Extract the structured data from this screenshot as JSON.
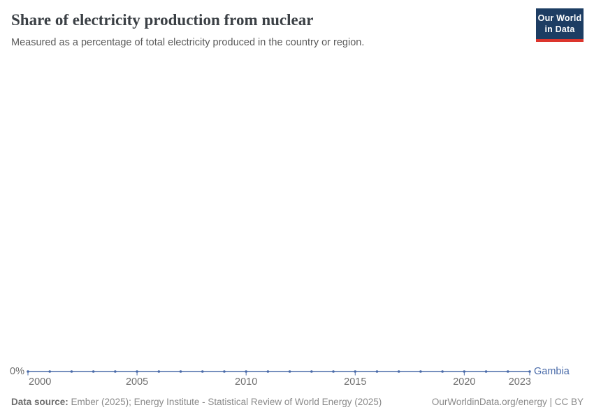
{
  "header": {
    "title": "Share of electricity production from nuclear",
    "subtitle": "Measured as a percentage of total electricity produced in the country or region.",
    "logo": {
      "line1": "Our World",
      "line2": "in Data"
    }
  },
  "chart_data": {
    "type": "line",
    "title": "Share of electricity production from nuclear",
    "subtitle": "Measured as a percentage of total electricity produced in the country or region.",
    "x": [
      2000,
      2001,
      2002,
      2003,
      2004,
      2005,
      2006,
      2007,
      2008,
      2009,
      2010,
      2011,
      2012,
      2013,
      2014,
      2015,
      2016,
      2017,
      2018,
      2019,
      2020,
      2021,
      2022,
      2023
    ],
    "series": [
      {
        "name": "Gambia",
        "values": [
          0,
          0,
          0,
          0,
          0,
          0,
          0,
          0,
          0,
          0,
          0,
          0,
          0,
          0,
          0,
          0,
          0,
          0,
          0,
          0,
          0,
          0,
          0,
          0
        ]
      }
    ],
    "x_ticks": [
      2000,
      2005,
      2010,
      2015,
      2020,
      2023
    ],
    "xlim": [
      2000,
      2023
    ],
    "y_tick_labels": [
      "0%"
    ],
    "ylabel": "",
    "xlabel": "",
    "grid": false,
    "legend_position": "end-of-line",
    "marker": "dot"
  },
  "footer": {
    "source_label": "Data source:",
    "source_text": " Ember (2025); Energy Institute - Statistical Review of World Energy (2025)",
    "link_text": "OurWorldinData.org/energy | CC BY"
  },
  "colors": {
    "line": "#4a6ba9",
    "axis_text": "#6e6e6e",
    "title_text": "#3b4045",
    "logo_bg": "#1d3d63",
    "logo_bar": "#dc352d"
  }
}
